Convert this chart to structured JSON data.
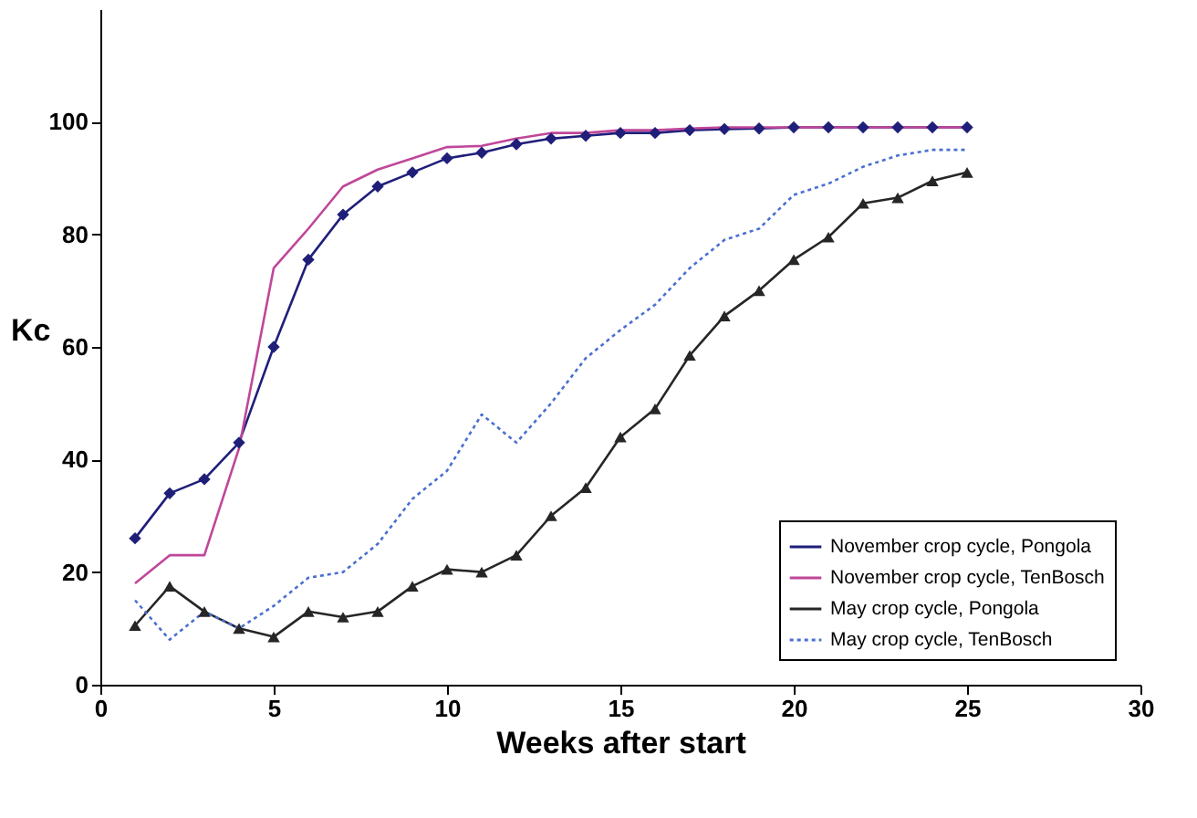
{
  "chart_data": {
    "type": "line",
    "xlabel": "Weeks after start",
    "ylabel": "Kc",
    "x": [
      1,
      2,
      3,
      4,
      5,
      6,
      7,
      8,
      9,
      10,
      11,
      12,
      13,
      14,
      15,
      16,
      17,
      18,
      19,
      20,
      21,
      22,
      23,
      24,
      25
    ],
    "series": [
      {
        "name": "November crop cycle, Pongola",
        "color": "#1f1f7a",
        "marker": "diamond",
        "line_style": "solid",
        "values": [
          26,
          34,
          36.5,
          43,
          60,
          75.5,
          83.5,
          88.5,
          91,
          93.5,
          94.5,
          96,
          97,
          97.5,
          98,
          98,
          98.5,
          98.7,
          98.8,
          99,
          99,
          99,
          99,
          99,
          99
        ]
      },
      {
        "name": "November crop cycle, TenBosch",
        "color": "#c0479a",
        "marker": "none",
        "line_style": "solid",
        "values": [
          18,
          23,
          23,
          42,
          74,
          81,
          88.5,
          91.5,
          93.5,
          95.5,
          95.7,
          97,
          98,
          98,
          98.5,
          98.5,
          98.8,
          99,
          99,
          99,
          99,
          99,
          99,
          99,
          99
        ]
      },
      {
        "name": "May crop cycle, Pongola",
        "color": "#262626",
        "marker": "triangle",
        "line_style": "solid",
        "values": [
          10.5,
          17.5,
          13,
          10,
          8.5,
          13,
          12,
          13,
          17.5,
          20.5,
          20,
          23,
          30,
          35,
          44,
          49,
          58.5,
          65.5,
          70,
          75.5,
          79.5,
          85.5,
          86.5,
          89.5,
          91
        ]
      },
      {
        "name": "May crop cycle, TenBosch",
        "color": "#4a6fd0",
        "marker": "none",
        "line_style": "dotted",
        "values": [
          15,
          8,
          13,
          10,
          14,
          19,
          20,
          25,
          33,
          38,
          48,
          43,
          50,
          58,
          63,
          67.5,
          74,
          79,
          81,
          87,
          89,
          92,
          94,
          95,
          95
        ]
      }
    ],
    "xlim": [
      0,
      30
    ],
    "xticks": [
      0,
      5,
      10,
      15,
      20,
      25,
      30
    ],
    "ylim": [
      0,
      120
    ],
    "yticks": [
      0,
      20,
      40,
      60,
      80,
      100
    ],
    "grid": false,
    "legend": "bottom right"
  }
}
